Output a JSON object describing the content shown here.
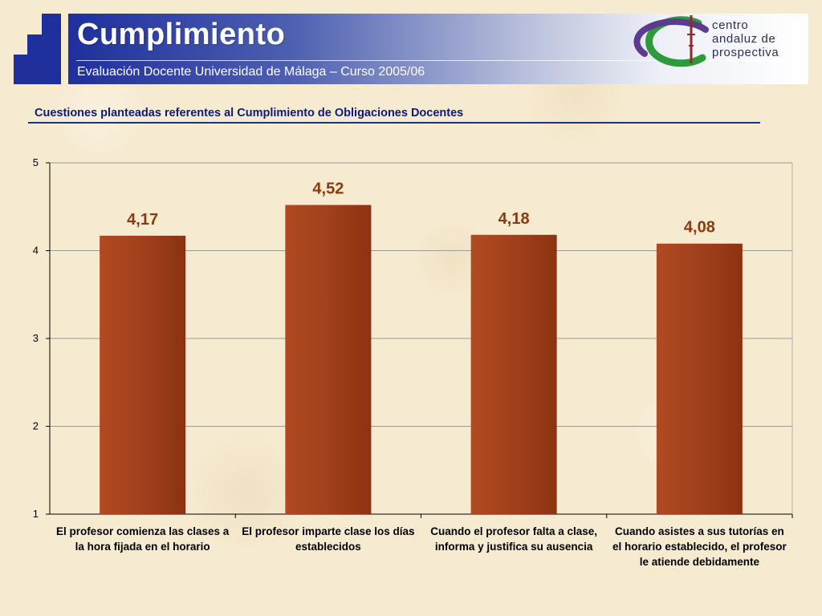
{
  "header": {
    "title": "Cumplimiento",
    "subtitle": "Evaluación Docente Universidad de Málaga – Curso 2005/06",
    "logo_lines": [
      "centro",
      "andaluz de",
      "prospectiva"
    ]
  },
  "colors": {
    "header_blue": "#1f2f9c",
    "bar_fill": "#a0401c",
    "value_label": "#8a3a10",
    "chart_title": "#0d1a7a"
  },
  "chart_data": {
    "type": "bar",
    "title": "Cuestiones planteadas referentes al Cumplimiento de Obligaciones Docentes",
    "categories": [
      "El profesor comienza las clases a la hora fijada en el horario",
      "El profesor imparte clase los días establecidos",
      "Cuando el profesor falta a clase, informa y justifica su ausencia",
      "Cuando asistes a sus tutorías en el horario establecido, el profesor le atiende debidamente"
    ],
    "values": [
      4.17,
      4.52,
      4.18,
      4.08
    ],
    "value_labels": [
      "4,17",
      "4,52",
      "4,18",
      "4,08"
    ],
    "xlabel": "",
    "ylabel": "",
    "ylim": [
      1,
      5
    ],
    "yticks": [
      "1",
      "2",
      "3",
      "4",
      "5"
    ],
    "grid": true,
    "legend": "none"
  }
}
